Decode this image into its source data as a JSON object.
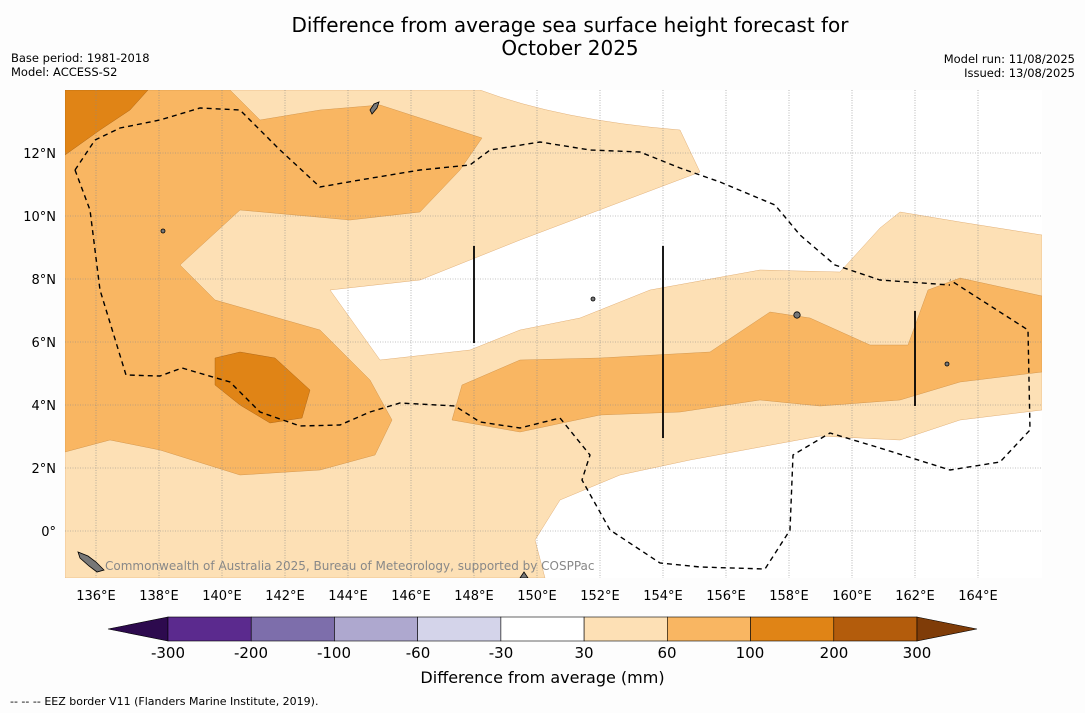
{
  "title": {
    "line1": "Difference from average sea surface height forecast for",
    "line2": "October 2025"
  },
  "meta_left": {
    "base_period": "Base period: 1981-2018",
    "model": "Model: ACCESS-S2"
  },
  "meta_right": {
    "model_run": "Model run: 11/08/2025",
    "issued": "Issued: 13/08/2025"
  },
  "map": {
    "lon_labels": [
      "136°E",
      "138°E",
      "140°E",
      "142°E",
      "144°E",
      "146°E",
      "148°E",
      "150°E",
      "152°E",
      "154°E",
      "156°E",
      "158°E",
      "160°E",
      "162°E",
      "164°E"
    ],
    "lat_labels": [
      "12°N",
      "10°N",
      "8°N",
      "6°N",
      "4°N",
      "2°N",
      "0°"
    ],
    "lon_range": [
      135,
      166
    ],
    "lat_range": [
      -1.5,
      14
    ],
    "grid": true,
    "credit": "Commonwealth of Australia 2025, Bureau of Meteorology, supported by COSPPac",
    "colors": {
      "fill_30_60": "#fde0b5",
      "fill_60_100": "#f9b662",
      "fill_100_200": "#e08416",
      "island": "#777777",
      "eez_line": "#000000"
    }
  },
  "colorbar": {
    "title": "Difference from average (mm)",
    "tick_labels": [
      "-300",
      "-200",
      "-100",
      "-60",
      "-30",
      "30",
      "60",
      "100",
      "200",
      "300"
    ],
    "bins": [
      "#5b2a8e",
      "#7d6eab",
      "#aea8cf",
      "#d4d4ea",
      "#ffffff",
      "#fde0b5",
      "#f9b662",
      "#e08416",
      "#b35c0c"
    ],
    "extend_low": "#2d0a4e",
    "extend_high": "#7f3c08"
  },
  "footer": {
    "legend_symbol": "-- -- --",
    "note": "EEZ border V11 (Flanders Marine Institute, 2019)."
  }
}
